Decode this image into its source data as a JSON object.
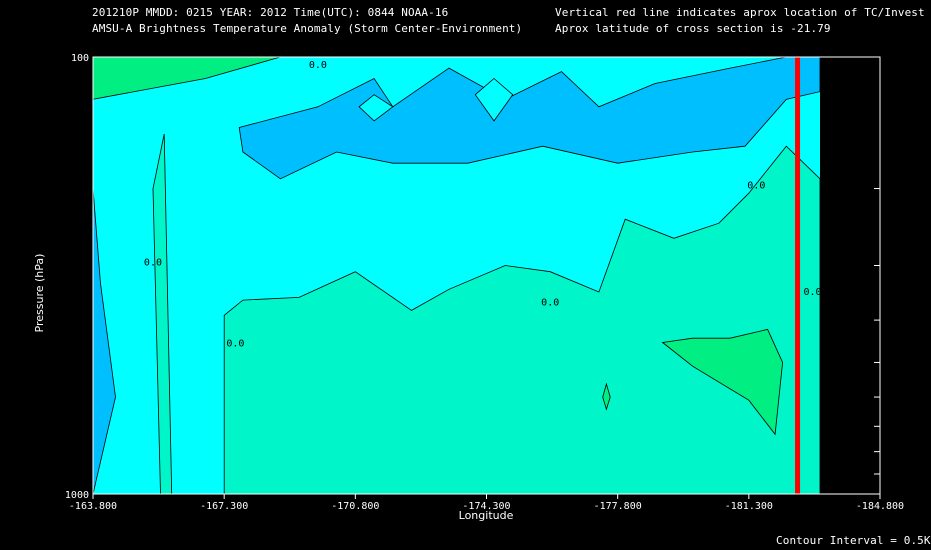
{
  "header": {
    "line1_left": "201210P  MMDD: 0215 YEAR: 2012 Time(UTC): 0844 NOAA-16",
    "line2_left": "AMSU-A Brightness Temperature Anomaly (Storm Center-Environment)",
    "line1_right": "Vertical red line indicates aprox location of TC/Invest",
    "line2_right": "Aprox latitude of cross section is -21.79"
  },
  "footer": {
    "contour_interval": "Contour Interval = 0.5K"
  },
  "colors": {
    "background": "#000000",
    "level_neg1": "#00bfff",
    "level_neg05": "#00ffff",
    "level_0": "#00f5c8",
    "level_pos05": "#00ee82",
    "tc_line": "#ff0000",
    "contour": "#000000"
  },
  "chart_data": {
    "type": "heatmap",
    "subtype": "filled-contour cross section",
    "xlabel": "Longitude",
    "ylabel": "Pressure (hPa)",
    "x_ticks": [
      "-163.800",
      "-167.300",
      "-170.800",
      "-174.300",
      "-177.800",
      "-181.300",
      "-184.800"
    ],
    "y_ticks": [
      "100",
      "1000"
    ],
    "y_scale": "log",
    "xlim": [
      -163.8,
      -184.8
    ],
    "ylim": [
      1000,
      100
    ],
    "data_extent_x": -183.2,
    "tc_longitude": -182.6,
    "contour_labels": [
      "0.0",
      "0.0",
      "0.0",
      "0.0",
      "0.0",
      "0.0"
    ],
    "regions": [
      {
        "name": "anomaly +0.5K (upper-left corner)",
        "value": 0.5,
        "polygon": [
          [
            -163.8,
            100
          ],
          [
            -168.8,
            100
          ],
          [
            -166.8,
            112
          ],
          [
            -163.8,
            125
          ]
        ]
      },
      {
        "name": "anomaly -1.0K (upper band)",
        "value": -1.0,
        "polygon": [
          [
            -167.7,
            145
          ],
          [
            -169.8,
            130
          ],
          [
            -171.3,
            112
          ],
          [
            -171.8,
            130
          ],
          [
            -173.3,
            106
          ],
          [
            -174.8,
            125
          ],
          [
            -176.3,
            108
          ],
          [
            -177.3,
            130
          ],
          [
            -178.8,
            115
          ],
          [
            -180.8,
            106
          ],
          [
            -182.3,
            100
          ],
          [
            -183.2,
            100
          ],
          [
            -183.2,
            120
          ],
          [
            -182.3,
            125
          ],
          [
            -181.2,
            160
          ],
          [
            -179.8,
            165
          ],
          [
            -177.8,
            175
          ],
          [
            -175.8,
            160
          ],
          [
            -173.8,
            175
          ],
          [
            -171.8,
            175
          ],
          [
            -170.3,
            165
          ],
          [
            -168.8,
            190
          ],
          [
            -167.8,
            165
          ]
        ]
      },
      {
        "name": "anomaly 0.0K (lower region)",
        "value": 0.0,
        "polygon": [
          [
            -167.3,
            1000
          ],
          [
            -167.3,
            390
          ],
          [
            -167.8,
            360
          ],
          [
            -169.3,
            355
          ],
          [
            -170.8,
            310
          ],
          [
            -172.3,
            380
          ],
          [
            -173.3,
            340
          ],
          [
            -174.8,
            300
          ],
          [
            -176.0,
            310
          ],
          [
            -177.3,
            345
          ],
          [
            -178.0,
            235
          ],
          [
            -179.3,
            260
          ],
          [
            -180.5,
            240
          ],
          [
            -181.3,
            205
          ],
          [
            -182.3,
            160
          ],
          [
            -183.2,
            190
          ],
          [
            -183.2,
            1000
          ]
        ]
      },
      {
        "name": "anomaly 0.0K (thin column)",
        "value": 0.0,
        "polygon": [
          [
            -165.9,
            1000
          ],
          [
            -165.7,
            150
          ],
          [
            -165.4,
            200
          ],
          [
            -165.6,
            1000
          ]
        ]
      },
      {
        "name": "anomaly -1.0K (left edge)",
        "value": -1.0,
        "polygon": [
          [
            -163.8,
            200
          ],
          [
            -164.0,
            330
          ],
          [
            -164.4,
            600
          ],
          [
            -163.8,
            1000
          ]
        ]
      },
      {
        "name": "anomaly +0.5K (lower-right bulge)",
        "value": 0.5,
        "polygon": [
          [
            -179.0,
            450
          ],
          [
            -179.8,
            510
          ],
          [
            -181.3,
            610
          ],
          [
            -182.0,
            730
          ],
          [
            -182.2,
            500
          ],
          [
            -181.8,
            420
          ],
          [
            -180.8,
            440
          ],
          [
            -179.8,
            440
          ]
        ]
      }
    ]
  }
}
